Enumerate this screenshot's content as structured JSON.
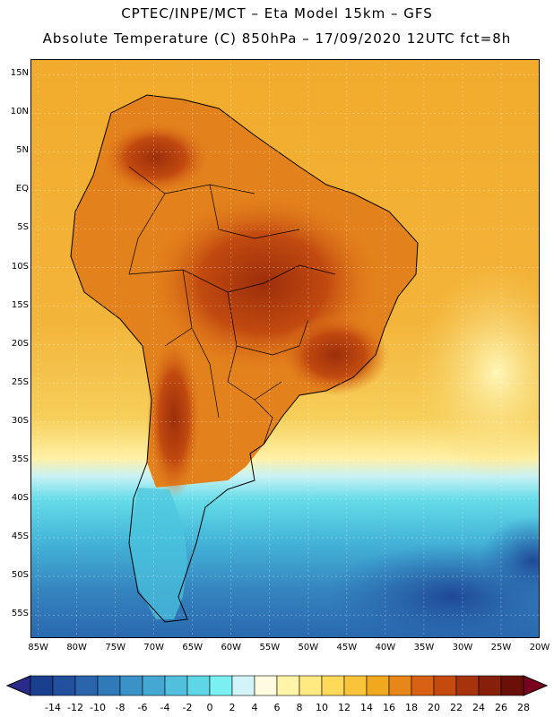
{
  "header": {
    "line1": "CPTEC/INPE/MCT –  Eta Model 15km – GFS",
    "line2": "Absolute Temperature (C) 850hPa – 17/09/2020 12UTC fct=8h"
  },
  "axes": {
    "lat_labels": [
      "15N",
      "10N",
      "5N",
      "EQ",
      "5S",
      "10S",
      "15S",
      "20S",
      "25S",
      "30S",
      "35S",
      "40S",
      "45S",
      "50S",
      "55S"
    ],
    "lon_labels": [
      "85W",
      "80W",
      "75W",
      "70W",
      "65W",
      "60W",
      "55W",
      "50W",
      "45W",
      "40W",
      "35W",
      "30W",
      "25W",
      "20W"
    ],
    "lat_range": [
      17,
      -58
    ],
    "lon_range": [
      -86,
      -20
    ]
  },
  "colorbar": {
    "ticks": [
      "-14",
      "-12",
      "-10",
      "-8",
      "-6",
      "-4",
      "-2",
      "0",
      "2",
      "4",
      "6",
      "8",
      "10",
      "12",
      "14",
      "16",
      "18",
      "20",
      "22",
      "24",
      "26",
      "28"
    ],
    "colors": [
      "#1a3f8f",
      "#23509e",
      "#2a64ad",
      "#317ab9",
      "#3a92c6",
      "#44a8d2",
      "#52c0dc",
      "#5fd6e6",
      "#7af0f2",
      "#d2f4f8",
      "#fffbe0",
      "#fff4a8",
      "#ffe980",
      "#ffd95a",
      "#f9c33a",
      "#f0a81e",
      "#e8861a",
      "#d86114",
      "#c44a0f",
      "#a6330b",
      "#86200b",
      "#6a1008"
    ]
  },
  "map": {
    "variable": "temperature-850hPa",
    "palette_ocean_warm": "#f0aa2a",
    "palette_land_hot": "#b5420c"
  }
}
